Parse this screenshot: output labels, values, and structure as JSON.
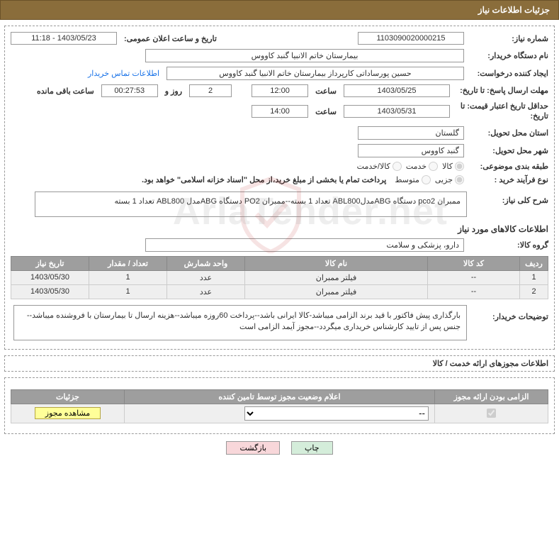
{
  "header": {
    "title": "جزئیات اطلاعات نیاز"
  },
  "fields": {
    "need_no_label": "شماره نیاز:",
    "need_no": "1103090020000215",
    "announce_label": "تاریخ و ساعت اعلان عمومی:",
    "announce_value": "1403/05/23 - 11:18",
    "buyer_org_label": "نام دستگاه خریدار:",
    "buyer_org": "بیمارستان خاتم الانبیا گنبد کاووس",
    "requester_label": "ایجاد کننده درخواست:",
    "requester": "حسین پورساداتی کارپرداز بیمارستان خاتم الانبیا گنبد کاووس",
    "contact_link": "اطلاعات تماس خریدار",
    "answer_deadline_label": "مهلت ارسال پاسخ: تا تاریخ:",
    "answer_date": "1403/05/25",
    "hour_label": "ساعت",
    "answer_time": "12:00",
    "days_remaining": "2",
    "days_and_label": "روز و",
    "time_remaining": "00:27:53",
    "remaining_suffix": "ساعت باقی مانده",
    "min_validity_label": "حداقل تاریخ اعتبار قیمت: تا تاریخ:",
    "validity_date": "1403/05/31",
    "validity_time": "14:00",
    "province_label": "استان محل تحویل:",
    "province": "گلستان",
    "city_label": "شهر محل تحویل:",
    "city": "گنبد کاووس",
    "category_label": "طبقه بندی موضوعی:",
    "cat_goods": "کالا",
    "cat_service": "خدمت",
    "cat_both": "کالا/خدمت",
    "purchase_type_label": "نوع فرآیند خرید :",
    "pt_minor": "جزیی",
    "pt_medium": "متوسط",
    "pt_note": "پرداخت تمام یا بخشی از مبلغ خرید،از محل \"اسناد خزانه اسلامی\" خواهد بود.",
    "need_desc_label": "شرح کلی نیاز:",
    "need_desc": "ممبران pco2 دستگاه ABGمدلABL800 تعداد 1 بسته--ممبران PO2 دستگاه ABGمدل ABL800 تعداد 1 بسته",
    "items_section": "اطلاعات کالاهای مورد نیاز",
    "group_label": "گروه کالا:",
    "group_value": "دارو، پزشکی و سلامت",
    "buyer_notes_label": "توضیحات خریدار:",
    "buyer_notes": "بارگذاری پیش فاکتور با قید برند الزامی میباشد-کالا ایرانی باشد--پرداخت 60روزه میباشد--هزینه ارسال تا بیمارستان با فروشنده میباشد--جنس پس از تایید کارشناس خریداری میگردد--مجوز آیمد الزامی است"
  },
  "items_table": {
    "columns": [
      "ردیف",
      "کد کالا",
      "نام کالا",
      "واحد شمارش",
      "تعداد / مقدار",
      "تاریخ نیاز"
    ],
    "col_widths": [
      "40px",
      "130px",
      "auto",
      "110px",
      "110px",
      "110px"
    ],
    "rows": [
      [
        "1",
        "--",
        "فیلتر ممبران",
        "عدد",
        "1",
        "1403/05/30"
      ],
      [
        "2",
        "--",
        "فیلتر ممبران",
        "عدد",
        "1",
        "1403/05/30"
      ]
    ],
    "header_bg": "#9e9e9e",
    "row_bg": "#efefef"
  },
  "auth_section": {
    "title": "اطلاعات مجوزهای ارائه خدمت / کالا",
    "columns": [
      "الزامی بودن ارائه مجوز",
      "اعلام وضعیت مجوز توسط تامین کننده",
      "جزئیات"
    ],
    "select_placeholder": "--",
    "detail_btn": "مشاهده مجوز",
    "checked": true
  },
  "footer": {
    "print": "چاپ",
    "back": "بازگشت"
  },
  "watermark": "AriaTender.net",
  "colors": {
    "header_bg": "#8a6d3b",
    "link": "#1a73e8",
    "note": "#a00"
  }
}
